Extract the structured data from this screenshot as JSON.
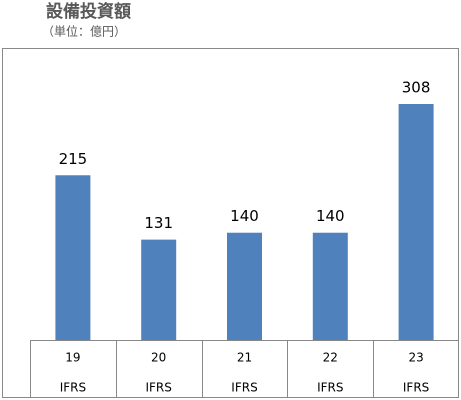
{
  "chart_data": {
    "type": "bar",
    "title": "設備投資額",
    "subtitle": "（単位：億円）",
    "categories": [
      "19",
      "20",
      "21",
      "22",
      "23"
    ],
    "category_sublabels": [
      "IFRS",
      "IFRS",
      "IFRS",
      "IFRS",
      "IFRS"
    ],
    "values": [
      215,
      131,
      140,
      140,
      308
    ],
    "color": "#4f81bd"
  }
}
